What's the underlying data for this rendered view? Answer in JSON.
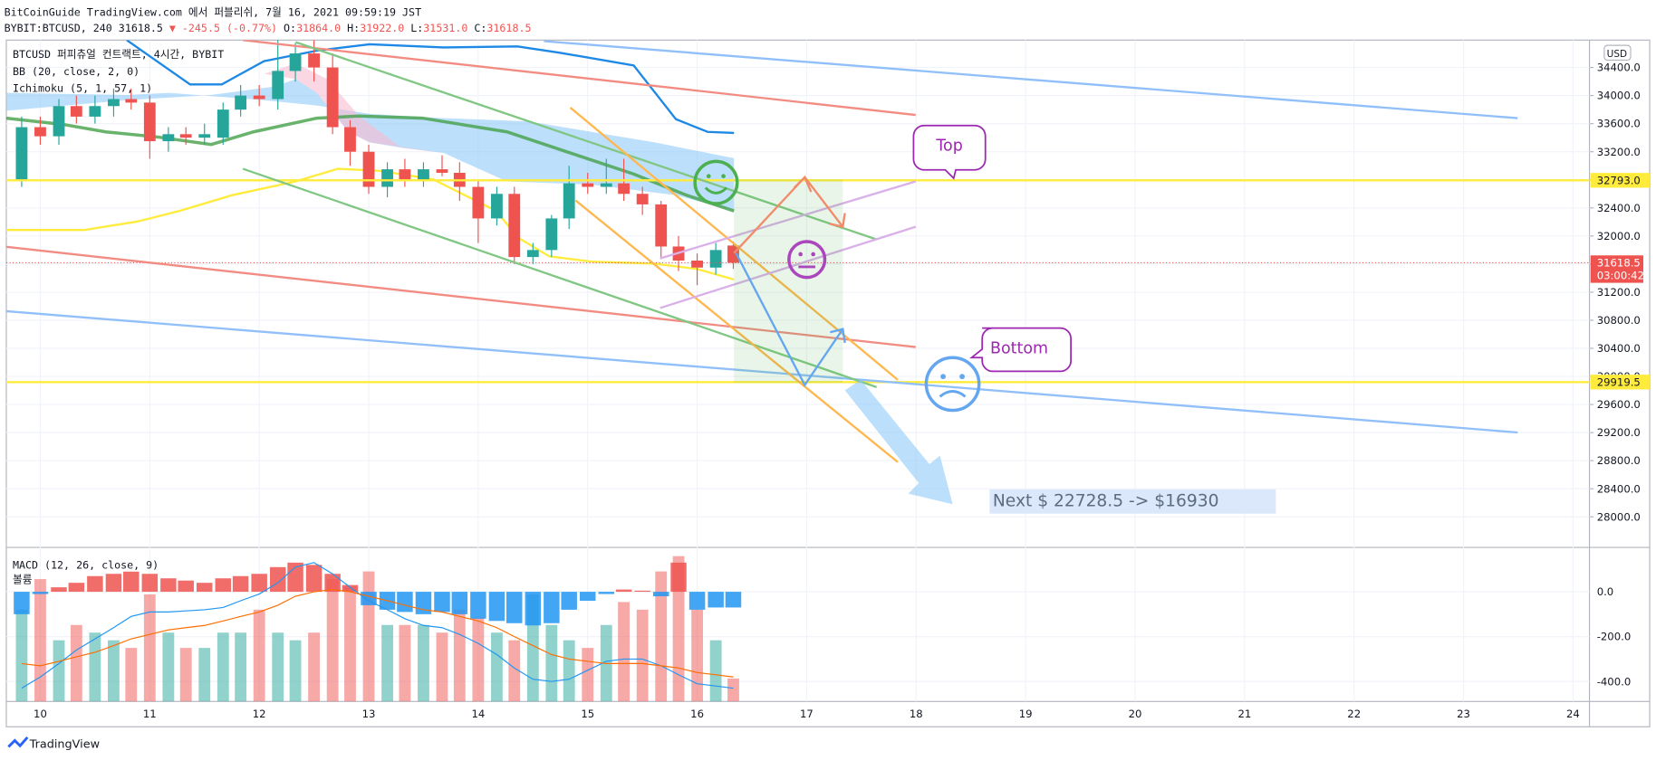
{
  "header": {
    "publisher": "BitCoinGuide TradingView.com 에서 퍼블리쉬, 7월 16, 2021 09:59:19 JST",
    "symbol": "BYBIT:BTCUSD, 240 31618.5",
    "change": "▼ -245.5 (-0.77%)",
    "ohlc": [
      {
        "label": "O:",
        "value": "31864.0"
      },
      {
        "label": "H:",
        "value": "31922.0"
      },
      {
        "label": "L:",
        "value": "31531.0"
      },
      {
        "label": "C:",
        "value": "31618.5"
      }
    ]
  },
  "chart_data": {
    "type": "candlestick",
    "title": "BTCUSD 퍼피츄얼 컨트랙트, 4시간, BYBIT",
    "indicators": [
      "BB (20, close, 2, 0)",
      "Ichimoku (5, 1, 57, 1)"
    ],
    "currency": "USD",
    "countdown": "03:00:42",
    "x": [
      9.83,
      10,
      10.17,
      10.33,
      10.5,
      10.67,
      10.83,
      11,
      11.17,
      11.33,
      11.5,
      11.67,
      11.83,
      12,
      12.17,
      12.33,
      12.5,
      12.67,
      12.83,
      13,
      13.17,
      13.33,
      13.5,
      13.67,
      13.83,
      14,
      14.17,
      14.33,
      14.5,
      14.67,
      14.83,
      15,
      15.17,
      15.33,
      15.5,
      15.67,
      15.83,
      16,
      16.17,
      16.33
    ],
    "open": [
      32800,
      33550,
      33420,
      33850,
      33700,
      33850,
      33950,
      33900,
      33350,
      33450,
      33400,
      33400,
      33800,
      34000,
      33950,
      34350,
      34600,
      34400,
      33550,
      33200,
      32700,
      32950,
      32800,
      32950,
      32900,
      32700,
      32250,
      32600,
      31700,
      31800,
      32250,
      32750,
      32700,
      32750,
      32600,
      32450,
      31850,
      31650,
      31550,
      31864
    ],
    "high": [
      33700,
      33700,
      33950,
      34000,
      34000,
      34100,
      34100,
      34000,
      33550,
      33550,
      33600,
      33900,
      34150,
      34150,
      34800,
      34750,
      34800,
      34600,
      33650,
      33300,
      33050,
      33100,
      33050,
      33150,
      33050,
      32800,
      32700,
      32700,
      31900,
      32300,
      33000,
      32900,
      33100,
      33100,
      32700,
      32500,
      32000,
      31750,
      31900,
      31922
    ],
    "low": [
      32700,
      33300,
      33300,
      33600,
      33600,
      33700,
      33800,
      33100,
      33200,
      33300,
      33300,
      33300,
      33700,
      33850,
      33800,
      34200,
      34200,
      33450,
      33000,
      32600,
      32550,
      32700,
      32700,
      32850,
      32500,
      31900,
      32150,
      31600,
      31600,
      31700,
      32100,
      32600,
      32600,
      32500,
      32300,
      31700,
      31500,
      31300,
      31450,
      31531
    ],
    "close": [
      33550,
      33420,
      33850,
      33700,
      33850,
      33950,
      33900,
      33350,
      33450,
      33400,
      33450,
      33800,
      34000,
      33950,
      34350,
      34600,
      34400,
      33550,
      33200,
      32700,
      32950,
      32800,
      32950,
      32900,
      32700,
      32250,
      32600,
      31700,
      31800,
      32250,
      32750,
      32700,
      32750,
      32600,
      32450,
      31850,
      31650,
      31550,
      31800,
      31618.5
    ],
    "volume": [
      60,
      80,
      40,
      50,
      45,
      40,
      35,
      70,
      45,
      35,
      35,
      45,
      45,
      60,
      45,
      40,
      45,
      80,
      75,
      85,
      50,
      50,
      50,
      45,
      60,
      55,
      45,
      40,
      70,
      50,
      40,
      35,
      50,
      65,
      60,
      85,
      95,
      60,
      40,
      15
    ],
    "volume_lim": [
      0,
      100
    ],
    "volume_label": "볼륨",
    "up_color": "#26a69a",
    "down_color": "#ef5350",
    "xlim": [
      9.69,
      24.15
    ],
    "xticks": [
      10,
      11,
      12,
      13,
      14,
      15,
      16,
      17,
      18,
      19,
      20,
      21,
      22,
      23,
      24
    ],
    "ylim": [
      27579,
      34790
    ],
    "yticks": [
      {
        "value": 28000,
        "label": "28000.0"
      },
      {
        "value": 28400,
        "label": "28400.0"
      },
      {
        "value": 28800,
        "label": "28800.0"
      },
      {
        "value": 29200,
        "label": "29200.0"
      },
      {
        "value": 29600,
        "label": "29600.0"
      },
      {
        "value": 30000,
        "label": "30000.0"
      },
      {
        "value": 30400,
        "label": "30400.0"
      },
      {
        "value": 30800,
        "label": "30800.0"
      },
      {
        "value": 31200,
        "label": "31200.0"
      },
      {
        "value": 31600,
        "label": "31600.0"
      },
      {
        "value": 32000,
        "label": "32000.0"
      },
      {
        "value": 32400,
        "label": "32400.0"
      },
      {
        "value": 32800,
        "label": "32800.0"
      },
      {
        "value": 33200,
        "label": "33200.0"
      },
      {
        "value": 33600,
        "label": "33600.0"
      },
      {
        "value": 34000,
        "label": "34000.0"
      },
      {
        "value": 34400,
        "label": "34400.0"
      }
    ],
    "grid": true,
    "levels": [
      {
        "value": 32793,
        "label": "32793.0",
        "color": "#ffeb3b"
      },
      {
        "value": 29919.5,
        "label": "29919.5",
        "color": "#ffeb3b"
      }
    ],
    "last_label": "31618.5",
    "macd": {
      "title": "MACD (12, 26, close, 9)",
      "histogram": [
        -100,
        -10,
        20,
        40,
        70,
        80,
        90,
        80,
        60,
        50,
        40,
        60,
        70,
        80,
        110,
        130,
        120,
        80,
        30,
        -60,
        -80,
        -90,
        -100,
        -90,
        -100,
        -120,
        -130,
        -140,
        -150,
        -140,
        -80,
        -40,
        -10,
        10,
        5,
        -20,
        130,
        -80,
        -70,
        -70
      ],
      "macd": [
        -430,
        -380,
        -320,
        -260,
        -210,
        -160,
        -110,
        -90,
        -90,
        -85,
        -80,
        -70,
        -40,
        -10,
        40,
        110,
        130,
        80,
        20,
        -40,
        -80,
        -120,
        -150,
        -160,
        -190,
        -230,
        -280,
        -340,
        -390,
        -400,
        -390,
        -350,
        -310,
        -300,
        -300,
        -330,
        -370,
        -410,
        -420,
        -430
      ],
      "signal": [
        -320,
        -330,
        -310,
        -290,
        -270,
        -240,
        -210,
        -190,
        -170,
        -160,
        -150,
        -130,
        -110,
        -90,
        -60,
        -20,
        0,
        10,
        0,
        -20,
        -40,
        -60,
        -80,
        -90,
        -110,
        -130,
        -160,
        -200,
        -240,
        -280,
        -300,
        -310,
        -320,
        -320,
        -320,
        -330,
        -340,
        -360,
        -370,
        -380
      ],
      "macd_color": "#2196f3",
      "signal_color": "#ff6d00",
      "pos_color": "#ef5350",
      "neg_color": "#2196f3",
      "ylim": [
        -489,
        193
      ],
      "yticks": [
        {
          "value": 0,
          "label": "0.0"
        },
        {
          "value": -200,
          "label": "-200.0"
        },
        {
          "value": -400,
          "label": "-400.0"
        }
      ]
    },
    "annotations": {
      "top": "Top",
      "bottom": "Bottom",
      "next": "Next $ 22728.5 -> $16930"
    }
  },
  "footer": {
    "brand": "TradingView"
  }
}
